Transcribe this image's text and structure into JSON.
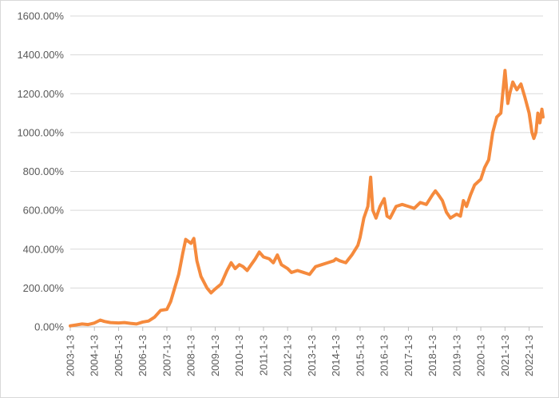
{
  "chart_data": {
    "type": "line",
    "title": "",
    "xlabel": "",
    "ylabel": "",
    "ylim": [
      0,
      1600
    ],
    "y_ticks": [
      0,
      200,
      400,
      600,
      800,
      1000,
      1200,
      1400,
      1600
    ],
    "y_tick_labels": [
      "0.00%",
      "200.00%",
      "400.00%",
      "600.00%",
      "800.00%",
      "1000.00%",
      "1200.00%",
      "1400.00%",
      "1600.00%"
    ],
    "x_tick_labels": [
      "2003-1-3",
      "2004-1-3",
      "2005-1-3",
      "2006-1-3",
      "2007-1-3",
      "2008-1-3",
      "2009-1-3",
      "2010-1-3",
      "2011-1-3",
      "2012-1-3",
      "2013-1-3",
      "2014-1-3",
      "2015-1-3",
      "2016-1-3",
      "2017-1-3",
      "2018-1-3",
      "2019-1-3",
      "2020-1-3",
      "2021-1-3",
      "2022-1-3"
    ],
    "grid": true,
    "legend": "none",
    "series": [
      {
        "color": "#F58A3D",
        "x": [
          "2003-01-03",
          "2003-04-01",
          "2003-07-01",
          "2003-10-01",
          "2004-01-03",
          "2004-04-01",
          "2004-06-01",
          "2004-09-01",
          "2005-01-03",
          "2005-04-01",
          "2005-07-01",
          "2005-10-01",
          "2006-01-03",
          "2006-04-01",
          "2006-07-01",
          "2006-10-01",
          "2007-01-03",
          "2007-03-01",
          "2007-05-01",
          "2007-07-01",
          "2007-09-01",
          "2007-10-15",
          "2008-01-03",
          "2008-02-15",
          "2008-04-01",
          "2008-06-01",
          "2008-09-01",
          "2008-11-01",
          "2009-01-03",
          "2009-04-01",
          "2009-07-01",
          "2009-09-01",
          "2009-11-01",
          "2010-01-03",
          "2010-03-01",
          "2010-05-01",
          "2010-07-01",
          "2010-09-01",
          "2010-11-01",
          "2011-01-03",
          "2011-04-01",
          "2011-06-01",
          "2011-08-01",
          "2011-10-01",
          "2012-01-03",
          "2012-03-01",
          "2012-06-01",
          "2012-09-01",
          "2012-12-01",
          "2013-01-03",
          "2013-03-01",
          "2013-06-01",
          "2013-09-01",
          "2013-12-01",
          "2014-01-03",
          "2014-03-01",
          "2014-06-01",
          "2014-09-01",
          "2014-12-01",
          "2015-01-03",
          "2015-03-01",
          "2015-05-01",
          "2015-06-12",
          "2015-07-15",
          "2015-09-01",
          "2015-11-01",
          "2016-01-03",
          "2016-02-15",
          "2016-04-01",
          "2016-07-01",
          "2016-10-01",
          "2017-01-03",
          "2017-04-01",
          "2017-07-01",
          "2017-10-01",
          "2018-01-03",
          "2018-02-15",
          "2018-04-01",
          "2018-06-01",
          "2018-08-01",
          "2018-10-01",
          "2019-01-03",
          "2019-03-01",
          "2019-04-15",
          "2019-06-01",
          "2019-08-01",
          "2019-10-01",
          "2020-01-03",
          "2020-03-01",
          "2020-05-01",
          "2020-07-01",
          "2020-09-01",
          "2020-11-01",
          "2021-01-03",
          "2021-02-15",
          "2021-03-15",
          "2021-05-01",
          "2021-07-01",
          "2021-09-01",
          "2021-11-01",
          "2022-01-03",
          "2022-02-15",
          "2022-03-15",
          "2022-04-15",
          "2022-05-15",
          "2022-06-15",
          "2022-07-15",
          "2022-08-01"
        ],
        "values": [
          5,
          10,
          15,
          12,
          20,
          35,
          28,
          22,
          20,
          22,
          18,
          15,
          25,
          30,
          50,
          85,
          90,
          130,
          200,
          270,
          380,
          450,
          430,
          455,
          340,
          260,
          200,
          175,
          195,
          220,
          290,
          330,
          300,
          320,
          310,
          290,
          320,
          350,
          385,
          360,
          350,
          330,
          370,
          320,
          300,
          280,
          290,
          280,
          270,
          285,
          310,
          320,
          330,
          340,
          350,
          340,
          330,
          370,
          420,
          460,
          560,
          620,
          770,
          600,
          560,
          620,
          660,
          570,
          560,
          620,
          630,
          620,
          610,
          640,
          630,
          680,
          700,
          680,
          650,
          590,
          560,
          580,
          570,
          650,
          620,
          680,
          730,
          760,
          820,
          860,
          1000,
          1080,
          1100,
          1320,
          1150,
          1200,
          1260,
          1220,
          1250,
          1180,
          1100,
          1000,
          970,
          1000,
          1100,
          1050,
          1120,
          1080
        ]
      }
    ]
  }
}
